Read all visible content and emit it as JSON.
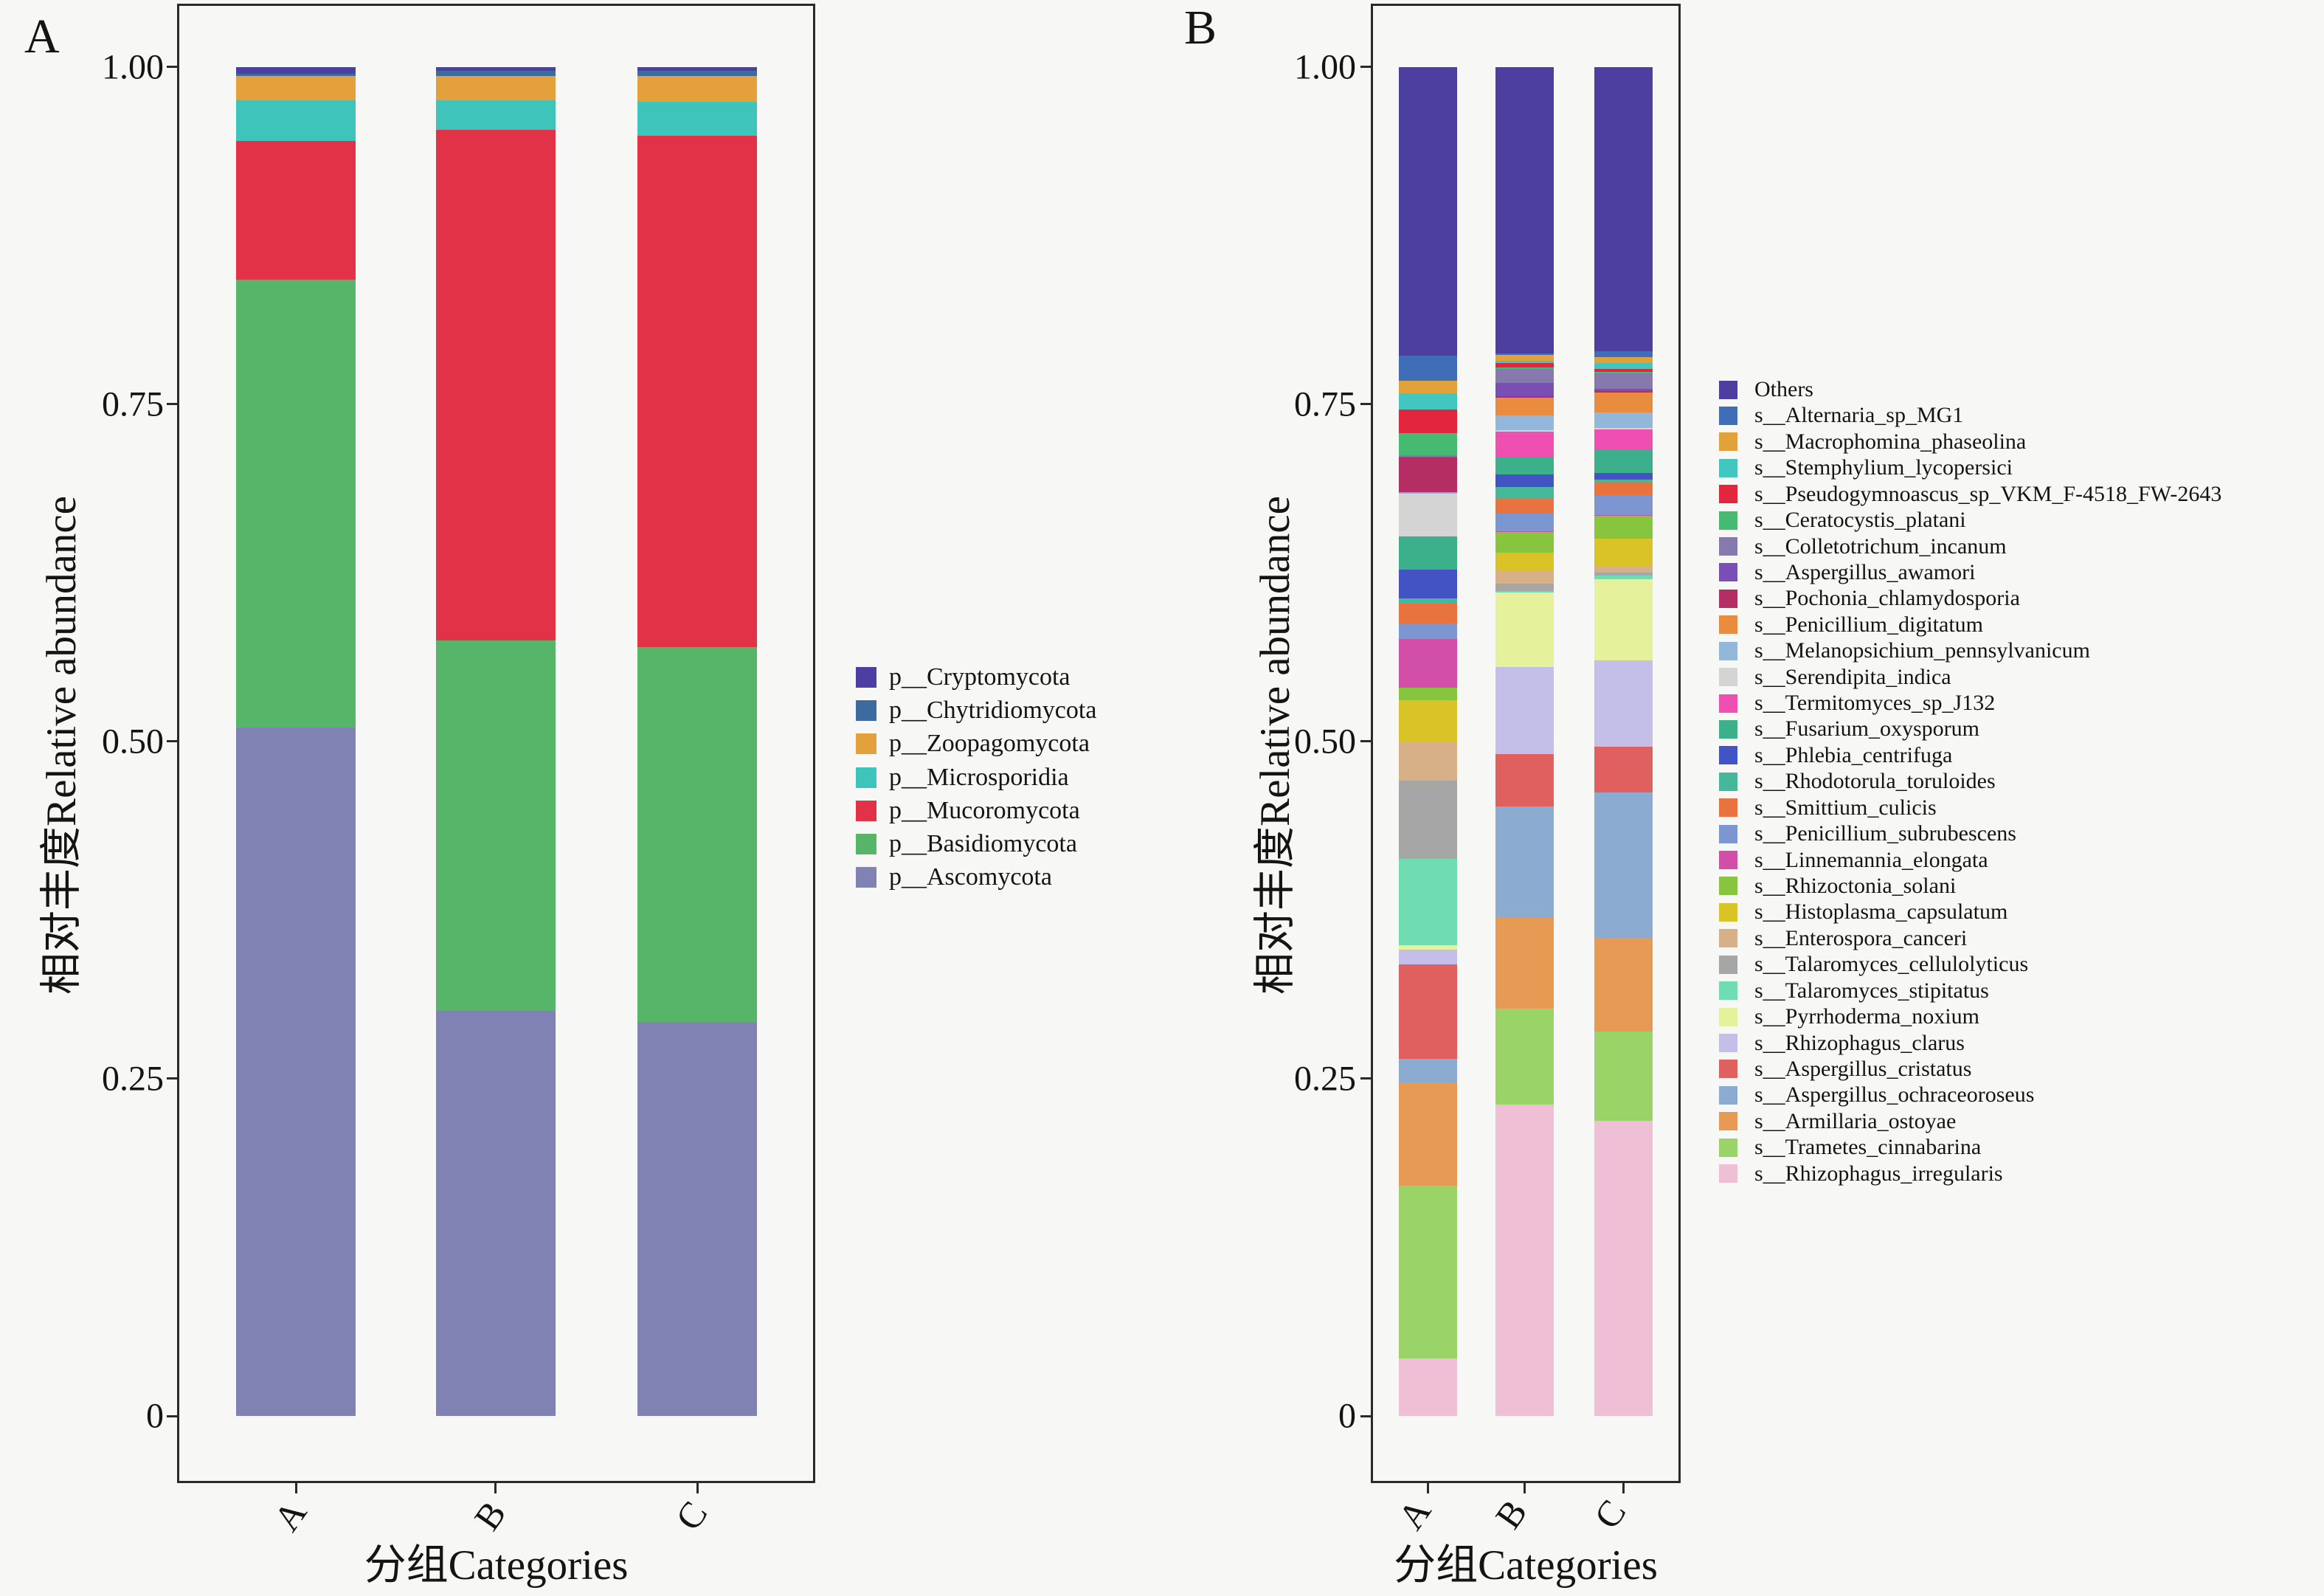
{
  "panels": [
    {
      "label": "A"
    },
    {
      "label": "B"
    }
  ],
  "axes": {
    "ylabel": "相对丰度Relative abundance",
    "xlabel": "分组Categories",
    "yticks": [
      {
        "v": 0,
        "label": "0"
      },
      {
        "v": 0.25,
        "label": "0.25"
      },
      {
        "v": 0.5,
        "label": "0.50"
      },
      {
        "v": 0.75,
        "label": "0.75"
      },
      {
        "v": 1.0,
        "label": "1.00"
      }
    ],
    "categories": [
      "A",
      "B",
      "C"
    ]
  },
  "chart_data": [
    {
      "type": "bar",
      "subtype": "stacked",
      "panel": "A",
      "categories": [
        "A",
        "B",
        "C"
      ],
      "ylabel": "相对丰度Relative abundance",
      "xlabel": "分组Categories",
      "ylim": [
        0,
        1
      ],
      "legend_position": "right",
      "series": [
        {
          "name": "p__Cryptomycota",
          "color": "#4c3fa3",
          "values": [
            0.005,
            0.003,
            0.003
          ]
        },
        {
          "name": "p__Chytridiomycota",
          "color": "#3d6b9f",
          "values": [
            0.002,
            0.004,
            0.004
          ]
        },
        {
          "name": "p__Zoopagomycota",
          "color": "#e4a03b",
          "values": [
            0.018,
            0.018,
            0.019
          ]
        },
        {
          "name": "p__Microsporidia",
          "color": "#3fc4bb",
          "values": [
            0.03,
            0.022,
            0.025
          ]
        },
        {
          "name": "p__Mucoromycota",
          "color": "#e13247",
          "values": [
            0.103,
            0.378,
            0.379
          ]
        },
        {
          "name": "p__Basidiomycota",
          "color": "#56b568",
          "values": [
            0.332,
            0.275,
            0.278
          ]
        },
        {
          "name": "p__Ascomycota",
          "color": "#7f82b3",
          "values": [
            0.51,
            0.3,
            0.292
          ]
        }
      ]
    },
    {
      "type": "bar",
      "subtype": "stacked",
      "panel": "B",
      "categories": [
        "A",
        "B",
        "C"
      ],
      "ylabel": "相对丰度Relative abundance",
      "xlabel": "分组Categories",
      "ylim": [
        0,
        1
      ],
      "legend_position": "right",
      "series": [
        {
          "name": "Others",
          "color": "#4c3fa0",
          "values": [
            0.2147,
            0.2136,
            0.211
          ]
        },
        {
          "name": "s__Alternaria_sp_MG1",
          "color": "#3f6db8",
          "values": [
            0.0191,
            0.001,
            0.0044
          ]
        },
        {
          "name": "s__Macrophomina_phaseolina",
          "color": "#e2a23b",
          "values": [
            0.009,
            0.0046,
            0.0044
          ]
        },
        {
          "name": "s__Stemphylium_lycopersici",
          "color": "#41c7c0",
          "values": [
            0.0123,
            0.0019,
            0.0044
          ]
        },
        {
          "name": "s__Pseudogymnoascus_sp_VKM_F-4518_FW-2643",
          "color": "#e1263e",
          "values": [
            0.0175,
            0.0033,
            0.0022
          ]
        },
        {
          "name": "s__Ceratocystis_platani",
          "color": "#47ba72",
          "values": [
            0.0164,
            0.001,
            0.001
          ]
        },
        {
          "name": "s__Colletotrichum_incanum",
          "color": "#8679ad",
          "values": [
            0.001,
            0.0101,
            0.012
          ]
        },
        {
          "name": "s__Aspergillus_awamori",
          "color": "#7a4fb5",
          "values": [
            0.0005,
            0.0104,
            0.0016
          ]
        },
        {
          "name": "s__Pochonia_chlamydosporia",
          "color": "#b52e63",
          "values": [
            0.0257,
            0.001,
            0.001
          ]
        },
        {
          "name": "s__Penicillium_digitatum",
          "color": "#ea8c3f",
          "values": [
            0.0005,
            0.0131,
            0.0148
          ]
        },
        {
          "name": "s__Melanopsichium_pennsylvanicum",
          "color": "#93b7da",
          "values": [
            0.001,
            0.0112,
            0.0115
          ]
        },
        {
          "name": "s__Serendipita_indica",
          "color": "#d4d4d4",
          "values": [
            0.0317,
            0.001,
            0.001
          ]
        },
        {
          "name": "s__Termitomyces_sp_J132",
          "color": "#ef4fb0",
          "values": [
            0.0005,
            0.0194,
            0.0153
          ]
        },
        {
          "name": "s__Fusarium_oxysporum",
          "color": "#3bb08a",
          "values": [
            0.024,
            0.0123,
            0.017
          ]
        },
        {
          "name": "s__Phlebia_centrifuga",
          "color": "#4253c3",
          "values": [
            0.0213,
            0.0096,
            0.0049
          ]
        },
        {
          "name": "s__Rhodotorula_toruloides",
          "color": "#46b89a",
          "values": [
            0.004,
            0.0087,
            0.002
          ]
        },
        {
          "name": "s__Smittium_culicis",
          "color": "#e8733f",
          "values": [
            0.015,
            0.0109,
            0.0093
          ]
        },
        {
          "name": "s__Penicillium_subrubescens",
          "color": "#7b96d0",
          "values": [
            0.0115,
            0.0131,
            0.0148
          ]
        },
        {
          "name": "s__Linnemannia_elongata",
          "color": "#d14fa6",
          "values": [
            0.0364,
            0.0005,
            0.0005
          ]
        },
        {
          "name": "s__Rhizoctonia_solani",
          "color": "#86c53d",
          "values": [
            0.0093,
            0.0156,
            0.017
          ]
        },
        {
          "name": "s__Histoplasma_capsulatum",
          "color": "#d9c327",
          "values": [
            0.0309,
            0.0131,
            0.021
          ]
        },
        {
          "name": "s__Enterospora_canceri",
          "color": "#d7b088",
          "values": [
            0.0287,
            0.0101,
            0.0044
          ]
        },
        {
          "name": "s__Talaromyces_cellulolyticus",
          "color": "#a6a6a6",
          "values": [
            0.0582,
            0.0055,
            0.002
          ]
        },
        {
          "name": "s__Talaromyces_stipitatus",
          "color": "#6fdcb1",
          "values": [
            0.0643,
            0.001,
            0.003
          ]
        },
        {
          "name": "s__Pyrrhoderma_noxium",
          "color": "#e6f29b",
          "values": [
            0.0033,
            0.0555,
            0.06
          ]
        },
        {
          "name": "s__Rhizophagus_clarus",
          "color": "#c3bfe8",
          "values": [
            0.0109,
            0.0651,
            0.0645
          ]
        },
        {
          "name": "s__Aspergillus_cristatus",
          "color": "#e06060",
          "values": [
            0.07,
            0.0391,
            0.034
          ]
        },
        {
          "name": "s__Aspergillus_ochraceoroseus",
          "color": "#8cabd0",
          "values": [
            0.0178,
            0.0823,
            0.108
          ]
        },
        {
          "name": "s__Armillaria_ostoyae",
          "color": "#e69a53",
          "values": [
            0.0766,
            0.0681,
            0.0695
          ]
        },
        {
          "name": "s__Trametes_cinnabarina",
          "color": "#9ad368",
          "values": [
            0.1288,
            0.0716,
            0.066
          ]
        },
        {
          "name": "s__Rhizophagus_irregularis",
          "color": "#efc0d5",
          "values": [
            0.0427,
            0.2324,
            0.2193
          ]
        }
      ]
    }
  ]
}
